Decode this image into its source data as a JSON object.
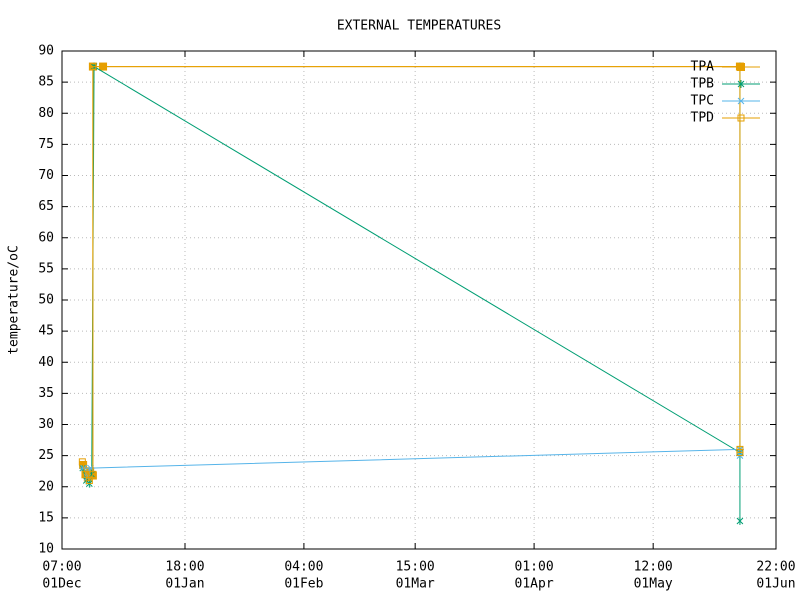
{
  "chart_data": {
    "type": "line",
    "title": "EXTERNAL TEMPERATURES",
    "y_label": "temperature/oC",
    "xlim": [
      0,
      182.625
    ],
    "ylim": [
      10,
      90
    ],
    "xticks": [
      {
        "value": 0,
        "label": [
          "07:00",
          "01Dec"
        ]
      },
      {
        "value": 31.458,
        "label": [
          "18:00",
          "01Jan"
        ]
      },
      {
        "value": 61.875,
        "label": [
          "04:00",
          "01Feb"
        ]
      },
      {
        "value": 90.333,
        "label": [
          "15:00",
          "01Mar"
        ]
      },
      {
        "value": 120.75,
        "label": [
          "01:00",
          "01Apr"
        ]
      },
      {
        "value": 151.208,
        "label": [
          "12:00",
          "01May"
        ]
      },
      {
        "value": 182.625,
        "label": [
          "22:00",
          "01Jun"
        ]
      }
    ],
    "yticks": [
      10,
      15,
      20,
      25,
      30,
      35,
      40,
      45,
      50,
      55,
      60,
      65,
      70,
      75,
      80,
      85,
      90
    ],
    "grid": true,
    "legend": "top-right",
    "series": [
      {
        "name": "TPA",
        "color": "#e69f00",
        "marker": "filled-square",
        "x": [
          5.4,
          6.0,
          6.6,
          7.2,
          7.9,
          7.9,
          10.5,
          173.4
        ],
        "values": [
          23.5,
          22,
          21.5,
          22.5,
          21.8,
          87.5,
          87.5,
          87.5
        ]
      },
      {
        "name": "TPB",
        "color": "#009e73",
        "marker": "asterisk",
        "x": [
          5.3,
          6.2,
          7.0,
          7.6,
          8.2,
          173.4,
          173.4,
          173.4,
          173.4
        ],
        "values": [
          23,
          21,
          20.5,
          22,
          87.5,
          25.5,
          87.5,
          26,
          14.5
        ]
      },
      {
        "name": "TPC",
        "color": "#56b4e9",
        "marker": "star",
        "x": [
          5.5,
          6.5,
          7.3,
          173.4,
          173.4
        ],
        "values": [
          23,
          21.5,
          23,
          26,
          25
        ]
      },
      {
        "name": "TPD",
        "color": "#e69f00",
        "marker": "open-square",
        "x": [
          5.2,
          6.0,
          7.0,
          7.9,
          7.9,
          173.4,
          173.4,
          173.4
        ],
        "values": [
          24,
          22,
          21,
          22,
          87.5,
          87.5,
          26,
          25.5
        ]
      }
    ]
  }
}
